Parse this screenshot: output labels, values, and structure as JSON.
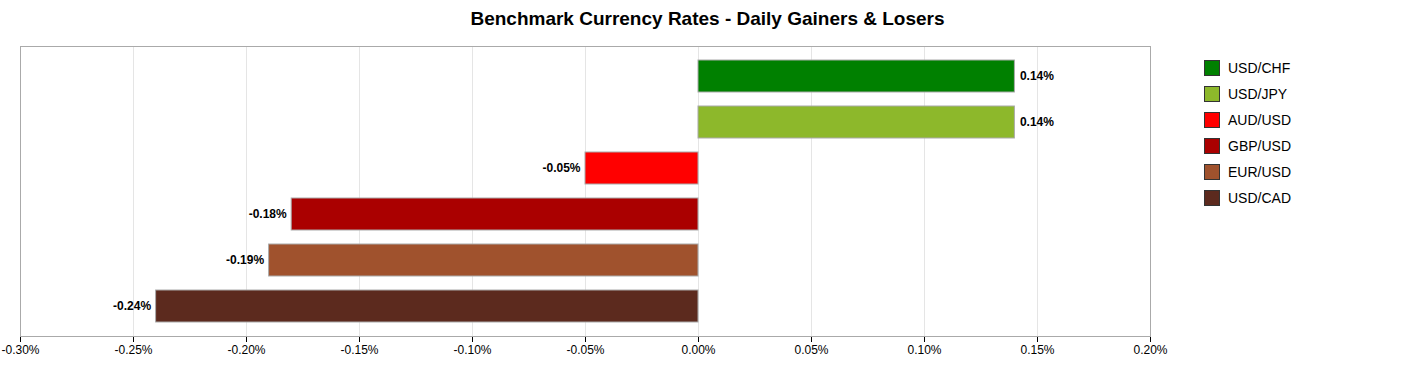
{
  "chart_data": {
    "type": "bar",
    "orientation": "horizontal",
    "title": "Benchmark Currency Rates - Daily Gainers & Losers",
    "categories": [
      "USD/CHF",
      "USD/JPY",
      "AUD/USD",
      "GBP/USD",
      "EUR/USD",
      "USD/CAD"
    ],
    "values": [
      0.0014,
      0.0014,
      -0.0005,
      -0.0018,
      -0.0019,
      -0.0024
    ],
    "value_labels": [
      "0.14%",
      "0.14%",
      "-0.05%",
      "-0.18%",
      "-0.19%",
      "-0.24%"
    ],
    "colors": [
      "#008000",
      "#8DB82B",
      "#FF0000",
      "#AA0000",
      "#A0522D",
      "#5C2A1E"
    ],
    "xlim": [
      -0.003,
      0.002
    ],
    "xticks": [
      {
        "value": -0.003,
        "label": "-0.30%"
      },
      {
        "value": -0.0025,
        "label": "-0.25%"
      },
      {
        "value": -0.002,
        "label": "-0.20%"
      },
      {
        "value": -0.0015,
        "label": "-0.15%"
      },
      {
        "value": -0.001,
        "label": "-0.10%"
      },
      {
        "value": -0.0005,
        "label": "-0.05%"
      },
      {
        "value": 0.0,
        "label": "0.00%"
      },
      {
        "value": 0.0005,
        "label": "0.05%"
      },
      {
        "value": 0.001,
        "label": "0.10%"
      },
      {
        "value": 0.0015,
        "label": "0.15%"
      },
      {
        "value": 0.002,
        "label": "0.20%"
      }
    ],
    "grid": true,
    "data_labels": true,
    "tick_labels": "x",
    "legend": "right"
  }
}
